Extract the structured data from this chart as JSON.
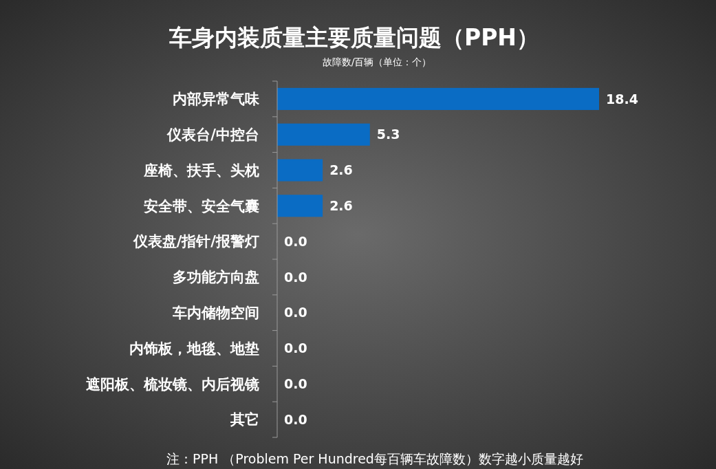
{
  "chart_data": {
    "type": "bar",
    "orientation": "horizontal",
    "title": "车身内装质量主要质量问题（PPH）",
    "subtitle": "故障数/百辆（单位：个）",
    "categories": [
      "内部异常气味",
      "仪表台/中控台",
      "座椅、扶手、头枕",
      "安全带、安全气囊",
      "仪表盘/指针/报警灯",
      "多功能方向盘",
      "车内储物空间",
      "内饰板，地毯、地垫",
      "遮阳板、梳妆镜、内后视镜",
      "其它"
    ],
    "values": [
      18.4,
      5.3,
      2.6,
      2.6,
      0.0,
      0.0,
      0.0,
      0.0,
      0.0,
      0.0
    ],
    "value_labels": [
      "18.4",
      "5.3",
      "2.6",
      "2.6",
      "0.0",
      "0.0",
      "0.0",
      "0.0",
      "0.0",
      "0.0"
    ],
    "color": "#0a6cc4",
    "annotations": [
      "注：PPH （Problem Per Hundred每百辆车故障数）数字越小质量越好"
    ]
  }
}
